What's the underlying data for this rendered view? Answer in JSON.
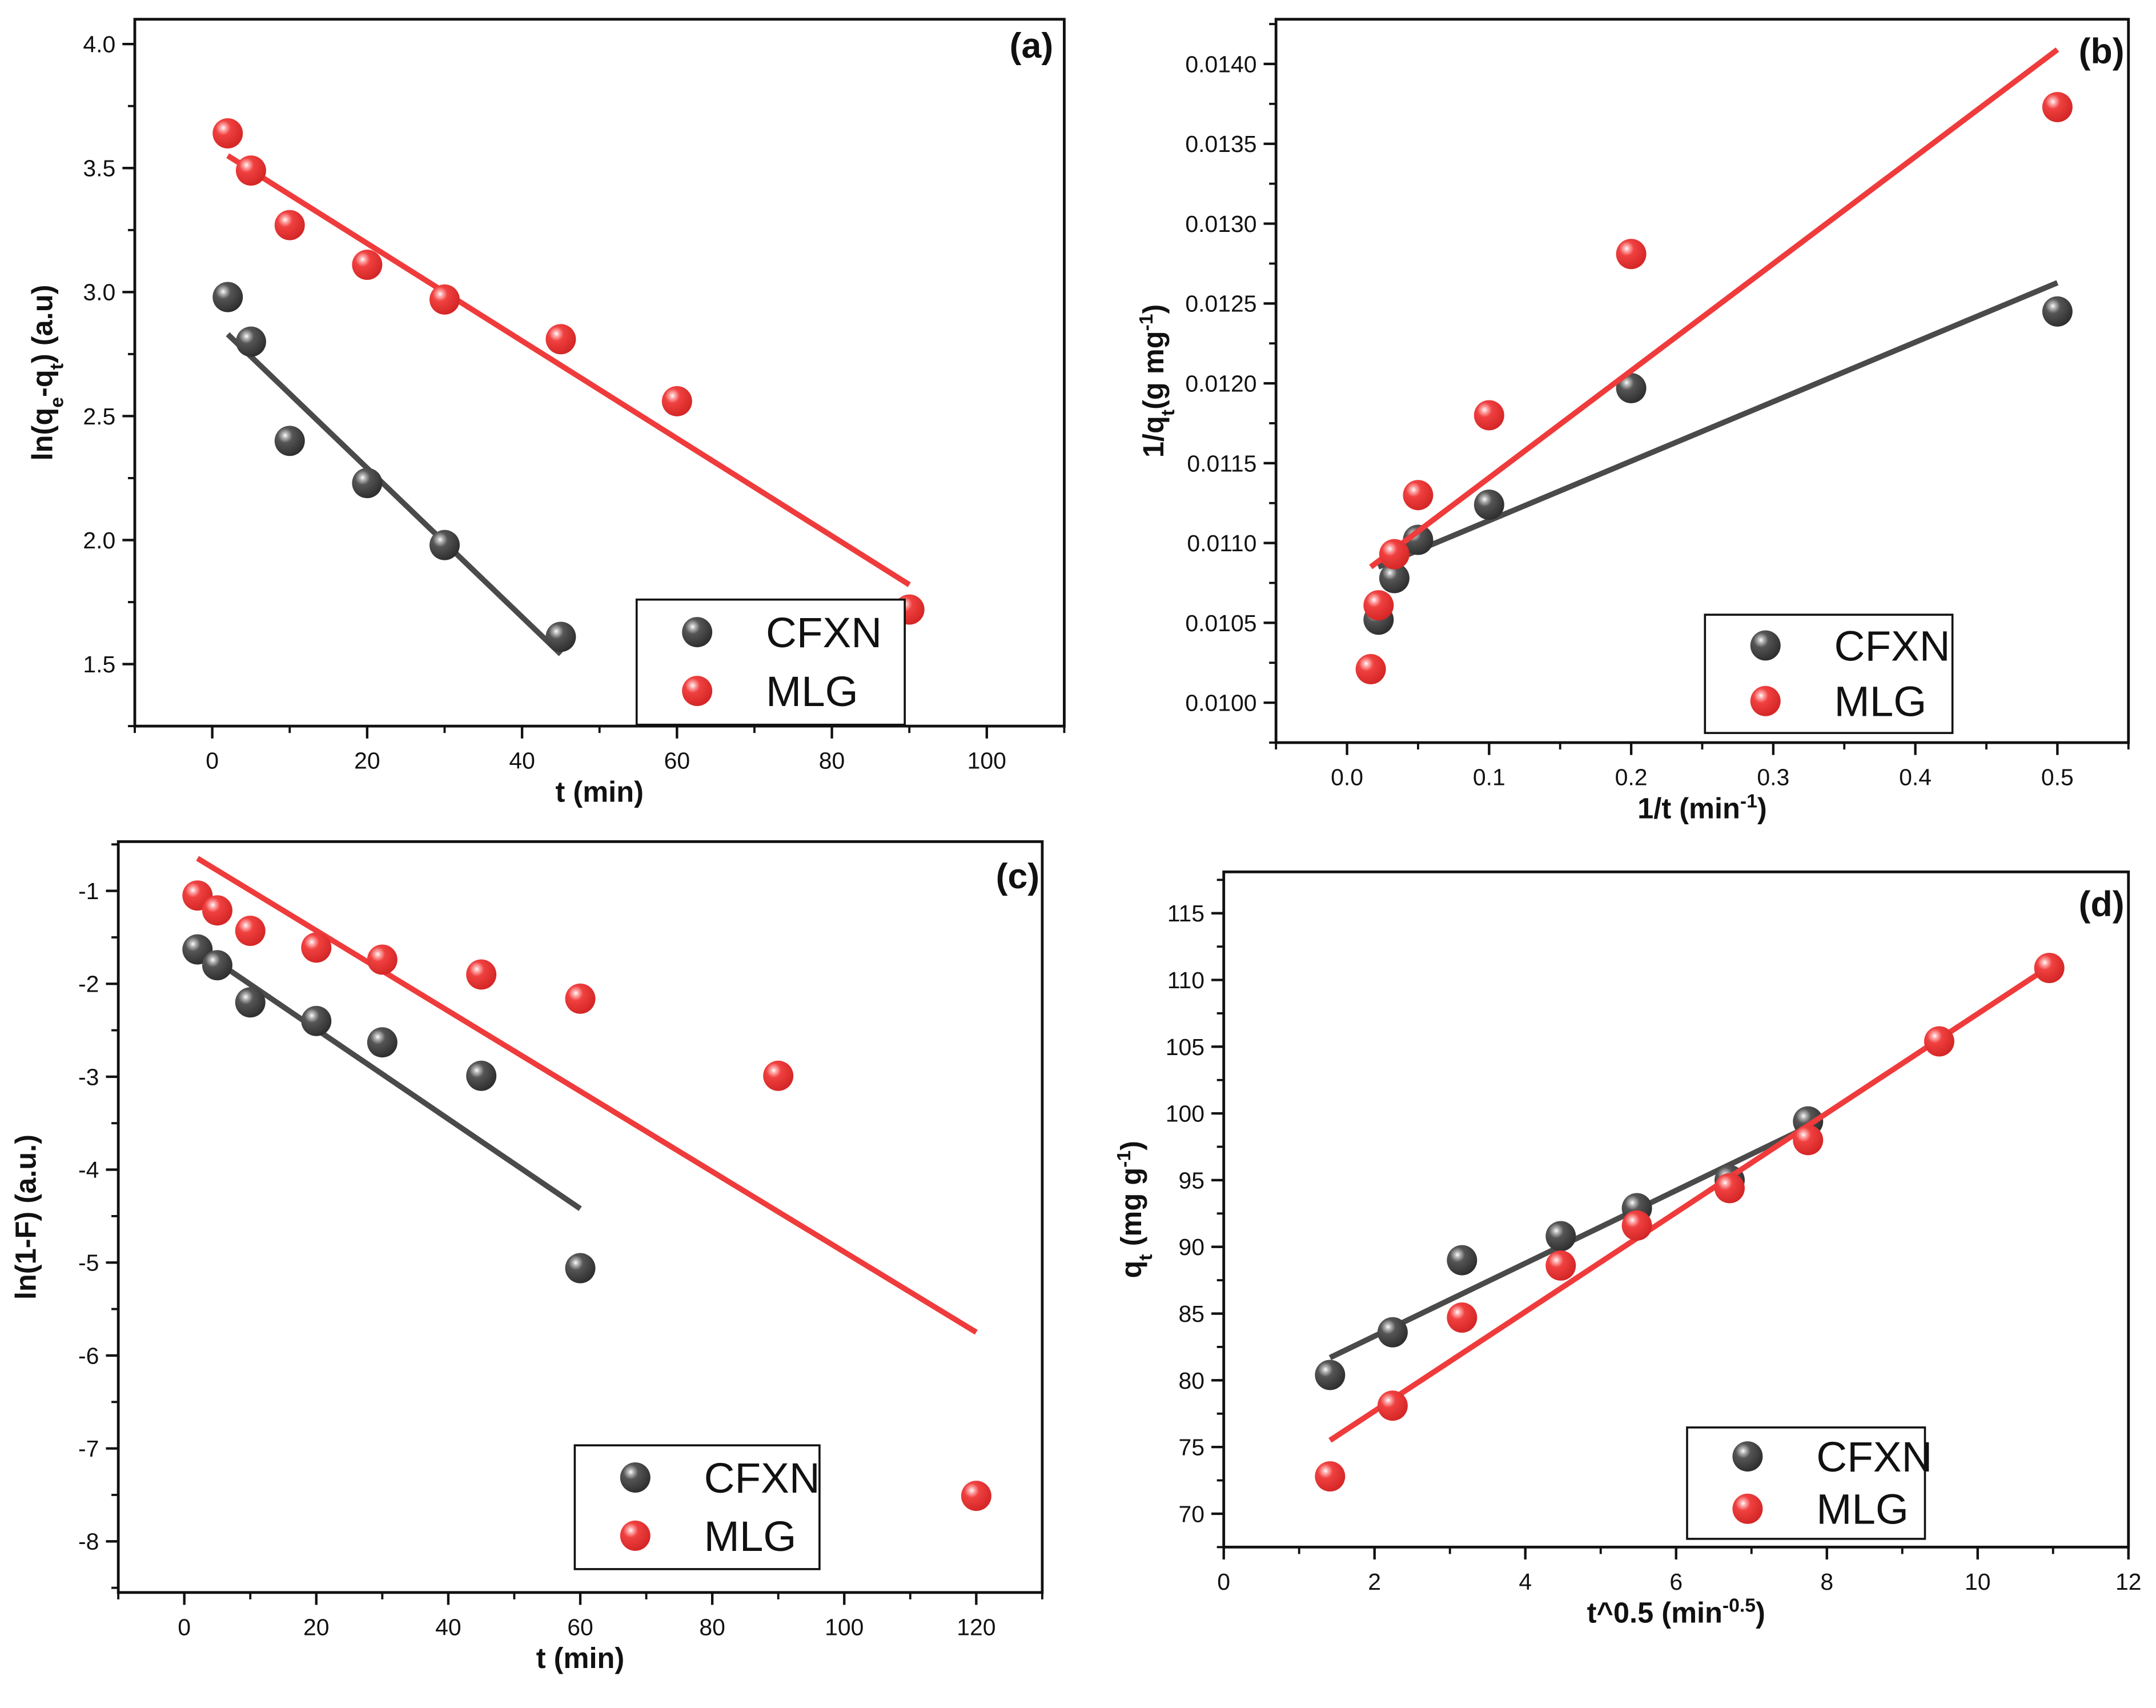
{
  "colors": {
    "CFXN": "#4a4a4a",
    "MLG": "#ef3b3b",
    "axis": "#111111"
  },
  "chart_data": [
    {
      "type": "scatter",
      "panel_label": "(a)",
      "xlabel_parts": [
        [
          "t (min)",
          ""
        ]
      ],
      "ylabel_parts": [
        [
          "ln(q",
          ""
        ],
        [
          "e",
          "sub"
        ],
        [
          "-q",
          ""
        ],
        [
          "t",
          "sub"
        ],
        [
          ") (a.u)",
          ""
        ]
      ],
      "xlim": [
        -10,
        110
      ],
      "ylim": [
        1.25,
        4.1
      ],
      "xticks": [
        0,
        20,
        40,
        60,
        80,
        100
      ],
      "xminor": 10,
      "yticks": [
        1.5,
        2.0,
        2.5,
        3.0,
        3.5,
        4.0
      ],
      "yminor": 0.25,
      "ydecimals": 1,
      "xdecimals": 0,
      "legend": {
        "position": "bottom-right",
        "entries": [
          "CFXN",
          "MLG"
        ]
      },
      "series": [
        {
          "name": "CFXN",
          "x": [
            2,
            5,
            10,
            20,
            30,
            45
          ],
          "y": [
            2.98,
            2.8,
            2.4,
            2.23,
            1.98,
            1.61
          ],
          "fit": [
            [
              2,
              2.83
            ],
            [
              45,
              1.54
            ]
          ]
        },
        {
          "name": "MLG",
          "x": [
            2,
            5,
            10,
            20,
            30,
            45,
            60,
            90
          ],
          "y": [
            3.64,
            3.49,
            3.27,
            3.11,
            2.97,
            2.81,
            2.56,
            1.72
          ],
          "fit": [
            [
              2,
              3.55
            ],
            [
              90,
              1.82
            ]
          ]
        }
      ]
    },
    {
      "type": "scatter",
      "panel_label": "(b)",
      "xlabel_parts": [
        [
          "1/t (min",
          ""
        ],
        [
          "-1",
          "sup"
        ],
        [
          ")",
          ""
        ]
      ],
      "ylabel_parts": [
        [
          "1/q",
          ""
        ],
        [
          "t",
          "sub"
        ],
        [
          "(g mg",
          ""
        ],
        [
          "-1",
          "sup"
        ],
        [
          ")",
          ""
        ]
      ],
      "xlim": [
        -0.05,
        0.55
      ],
      "ylim": [
        0.00975,
        0.01428
      ],
      "xticks": [
        0.0,
        0.1,
        0.2,
        0.3,
        0.4,
        0.5
      ],
      "xminor": 0.05,
      "yticks": [
        0.01,
        0.0105,
        0.011,
        0.0115,
        0.012,
        0.0125,
        0.013,
        0.0135,
        0.014
      ],
      "yminor": 0.00025,
      "ydecimals": 4,
      "xdecimals": 1,
      "legend": {
        "position": "bottom-right",
        "entries": [
          "CFXN",
          "MLG"
        ]
      },
      "series": [
        {
          "name": "CFXN",
          "x": [
            0.0222,
            0.0333,
            0.05,
            0.1,
            0.2,
            0.5
          ],
          "y": [
            0.01052,
            0.01078,
            0.01102,
            0.01124,
            0.01197,
            0.01245
          ],
          "fit": [
            [
              0.022,
              0.01085
            ],
            [
              0.5,
              0.01263
            ]
          ]
        },
        {
          "name": "MLG",
          "x": [
            0.0167,
            0.0222,
            0.0333,
            0.05,
            0.1,
            0.2,
            0.5
          ],
          "y": [
            0.01021,
            0.01061,
            0.01093,
            0.0113,
            0.0118,
            0.01281,
            0.01373
          ],
          "fit": [
            [
              0.0167,
              0.01085
            ],
            [
              0.5,
              0.01409
            ]
          ]
        }
      ]
    },
    {
      "type": "scatter",
      "panel_label": "(c)",
      "xlabel_parts": [
        [
          "t (min)",
          ""
        ]
      ],
      "ylabel_parts": [
        [
          "ln(1-F) (a.u.)",
          ""
        ]
      ],
      "xlim": [
        -10,
        130
      ],
      "ylim": [
        -8.55,
        -0.47
      ],
      "xticks": [
        0,
        20,
        40,
        60,
        80,
        100,
        120
      ],
      "xminor": 10,
      "yticks": [
        -8,
        -7,
        -6,
        -5,
        -4,
        -3,
        -2,
        -1
      ],
      "yminor": 0.5,
      "ydecimals": 0,
      "xdecimals": 0,
      "legend": {
        "position": "bottom-center",
        "entries": [
          "CFXN",
          "MLG"
        ]
      },
      "series": [
        {
          "name": "CFXN",
          "x": [
            2,
            5,
            10,
            20,
            30,
            45,
            60
          ],
          "y": [
            -1.63,
            -1.8,
            -2.2,
            -2.4,
            -2.63,
            -2.99,
            -5.06
          ],
          "fit": [
            [
              2,
              -1.62
            ],
            [
              60,
              -4.42
            ]
          ]
        },
        {
          "name": "MLG",
          "x": [
            2,
            5,
            10,
            20,
            30,
            45,
            60,
            90,
            120
          ],
          "y": [
            -1.05,
            -1.21,
            -1.43,
            -1.61,
            -1.74,
            -1.9,
            -2.16,
            -2.99,
            -7.51
          ],
          "fit": [
            [
              2,
              -0.65
            ],
            [
              120,
              -5.75
            ]
          ]
        }
      ]
    },
    {
      "type": "scatter",
      "panel_label": "(d)",
      "xlabel_parts": [
        [
          "t^0.5 (min",
          ""
        ],
        [
          "-0.5",
          "sup"
        ],
        [
          ")",
          ""
        ]
      ],
      "ylabel_parts": [
        [
          "q",
          ""
        ],
        [
          "t",
          "sub"
        ],
        [
          " (mg g",
          ""
        ],
        [
          "-1",
          "sup"
        ],
        [
          ")",
          ""
        ]
      ],
      "xlim": [
        0,
        12
      ],
      "ylim": [
        67.5,
        118.1
      ],
      "xticks": [
        0,
        2,
        4,
        6,
        8,
        10,
        12
      ],
      "xminor": 1,
      "yticks": [
        70,
        75,
        80,
        85,
        90,
        95,
        100,
        105,
        110,
        115
      ],
      "yminor": 2.5,
      "ydecimals": 0,
      "xdecimals": 0,
      "legend": {
        "position": "bottom-center",
        "entries": [
          "CFXN",
          "MLG"
        ]
      },
      "series": [
        {
          "name": "CFXN",
          "x": [
            1.41,
            2.24,
            3.16,
            4.47,
            5.48,
            6.71,
            7.75
          ],
          "y": [
            80.4,
            83.6,
            89.0,
            90.8,
            92.9,
            95.0,
            99.4
          ],
          "fit": [
            [
              1.41,
              81.7
            ],
            [
              7.75,
              99.0
            ]
          ]
        },
        {
          "name": "MLG",
          "x": [
            1.41,
            2.24,
            3.16,
            4.47,
            5.48,
            6.71,
            7.75,
            9.49,
            10.95
          ],
          "y": [
            72.8,
            78.1,
            84.7,
            88.6,
            91.6,
            94.4,
            98.0,
            105.4,
            110.9
          ],
          "fit": [
            [
              1.41,
              75.5
            ],
            [
              10.95,
              111.0
            ]
          ]
        }
      ]
    }
  ]
}
